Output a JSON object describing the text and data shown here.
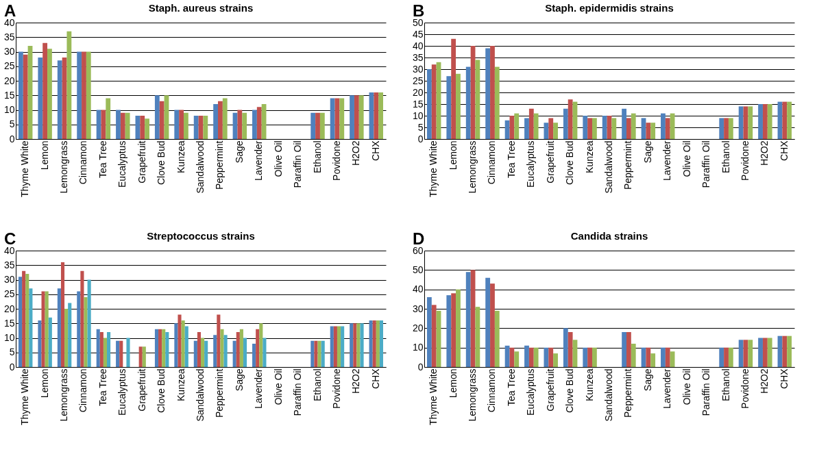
{
  "chart_data": [
    {
      "type": "bar",
      "title": "Staph. aureus strains",
      "annotations": [
        "A"
      ],
      "categories": [
        "Thyme White",
        "Lemon",
        "Lemongrass",
        "Cinnamon",
        "Tea Tree",
        "Eucalyptus",
        "Grapefruit",
        "Clove Bud",
        "Kunzea",
        "Sandalwood",
        "Peppermint",
        "Sage",
        "Lavender",
        "Olive Oil",
        "Paraffin Oil",
        "Ethanol",
        "Povidone",
        "H2O2",
        "CHX"
      ],
      "ylim": [
        0,
        40
      ],
      "yticks": [
        0,
        5,
        10,
        15,
        20,
        25,
        30,
        35,
        40
      ],
      "grid": "y",
      "series": [
        {
          "color": "#4f81bd",
          "values": [
            30,
            28,
            27,
            30,
            10,
            10,
            8,
            15,
            10,
            8,
            12,
            9,
            10,
            null,
            null,
            9,
            14,
            15,
            16
          ]
        },
        {
          "color": "#c0504d",
          "values": [
            29,
            33,
            28,
            30,
            10,
            9,
            8,
            13,
            10,
            8,
            13,
            10,
            11,
            null,
            null,
            9,
            14,
            15,
            16
          ]
        },
        {
          "color": "#9bbb59",
          "values": [
            32,
            31,
            37,
            30,
            14,
            9,
            7,
            15,
            9,
            8,
            14,
            9,
            12,
            null,
            null,
            9,
            14,
            15,
            16
          ]
        }
      ]
    },
    {
      "type": "bar",
      "title": "Staph. epidermidis strains",
      "annotations": [
        "B"
      ],
      "categories": [
        "Thyme White",
        "Lemon",
        "Lemongrass",
        "Cinnamon",
        "Tea Tree",
        "Eucalyptus",
        "Grapefruit",
        "Clove Bud",
        "Kunzea",
        "Sandalwood",
        "Peppermint",
        "Sage",
        "Lavender",
        "Olive Oil",
        "Paraffin Oil",
        "Ethanol",
        "Povidone",
        "H2O2",
        "CHX"
      ],
      "ylim": [
        0,
        50
      ],
      "yticks": [
        0,
        5,
        10,
        15,
        20,
        25,
        30,
        35,
        40,
        45,
        50
      ],
      "grid": "y",
      "series": [
        {
          "color": "#4f81bd",
          "values": [
            30,
            27,
            31,
            39,
            8,
            9,
            7,
            13,
            10,
            10,
            13,
            9,
            11,
            null,
            null,
            9,
            14,
            15,
            16
          ]
        },
        {
          "color": "#c0504d",
          "values": [
            32,
            43,
            40,
            40,
            10,
            13,
            9,
            17,
            9,
            10,
            9,
            7,
            9,
            null,
            null,
            9,
            14,
            15,
            16
          ]
        },
        {
          "color": "#9bbb59",
          "values": [
            33,
            28,
            34,
            31,
            11,
            11,
            7,
            16,
            9,
            9,
            11,
            7,
            11,
            null,
            null,
            9,
            14,
            15,
            16
          ]
        }
      ]
    },
    {
      "type": "bar",
      "title": "Streptococcus strains",
      "annotations": [
        "C"
      ],
      "categories": [
        "Thyme White",
        "Lemon",
        "Lemongrass",
        "Cinnamon",
        "Tea Tree",
        "Eucalyptus",
        "Grapefruit",
        "Clove Bud",
        "Kunzea",
        "Sandalwood",
        "Peppermint",
        "Sage",
        "Lavender",
        "Olive Oil",
        "Paraffin Oil",
        "Ethanol",
        "Povidone",
        "H2O2",
        "CHX"
      ],
      "ylim": [
        0,
        40
      ],
      "yticks": [
        0,
        5,
        10,
        15,
        20,
        25,
        30,
        35,
        40
      ],
      "grid": "y",
      "series": [
        {
          "color": "#4f81bd",
          "values": [
            31,
            16,
            27,
            26,
            13,
            9,
            null,
            13,
            15,
            9,
            11,
            9,
            8,
            null,
            null,
            9,
            14,
            15,
            16
          ]
        },
        {
          "color": "#c0504d",
          "values": [
            33,
            26,
            36,
            33,
            12,
            9,
            7,
            13,
            18,
            12,
            18,
            12,
            13,
            null,
            null,
            9,
            14,
            15,
            16
          ]
        },
        {
          "color": "#9bbb59",
          "values": [
            32,
            26,
            20,
            24,
            10,
            null,
            7,
            13,
            16,
            10,
            13,
            13,
            15,
            null,
            null,
            9,
            14,
            15,
            16
          ]
        },
        {
          "color": "#4bacc6",
          "values": [
            27,
            17,
            22,
            30,
            12,
            10,
            null,
            12,
            14,
            9,
            11,
            10,
            10,
            null,
            null,
            9,
            14,
            15,
            16
          ]
        }
      ]
    },
    {
      "type": "bar",
      "title": "Candida strains",
      "annotations": [
        "D"
      ],
      "categories": [
        "Thyme White",
        "Lemon",
        "Lemongrass",
        "Cinnamon",
        "Tea Tree",
        "Eucalyptus",
        "Grapefruit",
        "Clove Bud",
        "Kunzea",
        "Sandalwood",
        "Peppermint",
        "Sage",
        "Lavender",
        "Olive Oil",
        "Paraffin Oil",
        "Ethanol",
        "Povidone",
        "H2O2",
        "CHX"
      ],
      "ylim": [
        0,
        60
      ],
      "yticks": [
        0,
        10,
        20,
        30,
        40,
        50,
        60
      ],
      "grid": "y",
      "series": [
        {
          "color": "#4f81bd",
          "values": [
            36,
            37,
            49,
            46,
            11,
            11,
            10,
            20,
            10,
            null,
            18,
            10,
            10,
            null,
            null,
            10,
            14,
            15,
            16
          ]
        },
        {
          "color": "#c0504d",
          "values": [
            32,
            38,
            50,
            43,
            10,
            10,
            10,
            18,
            10,
            null,
            18,
            10,
            10,
            null,
            null,
            10,
            14,
            15,
            16
          ]
        },
        {
          "color": "#9bbb59",
          "values": [
            29,
            40,
            31,
            29,
            8,
            10,
            7,
            14,
            10,
            null,
            12,
            7,
            8,
            null,
            null,
            10,
            14,
            15,
            16
          ]
        }
      ]
    }
  ]
}
